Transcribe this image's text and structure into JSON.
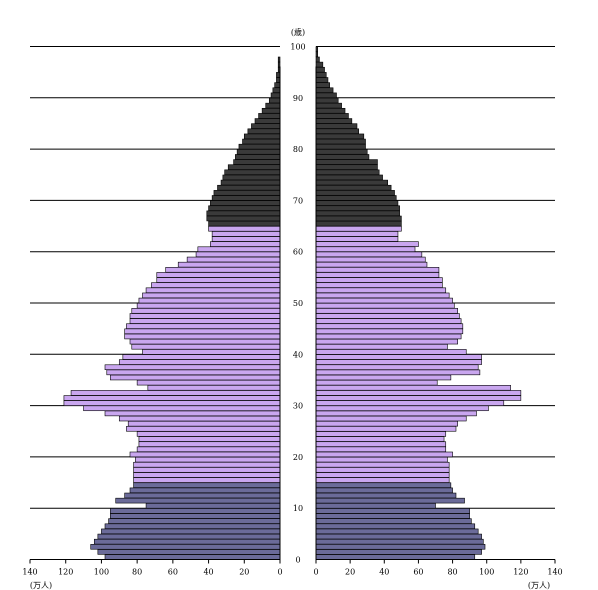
{
  "chart_data": {
    "type": "bar",
    "orientation": "horizontal",
    "layout": "population-pyramid",
    "age_unit": "(歳)",
    "value_unit": "(万人)",
    "age_range": [
      0,
      100
    ],
    "age_ticks": [
      "0",
      "10",
      "20",
      "30",
      "40",
      "50",
      "60",
      "70",
      "80",
      "90",
      "100"
    ],
    "value_range": [
      0,
      140
    ],
    "left_ticks": [
      "140",
      "120",
      "100",
      "80",
      "60",
      "40",
      "20",
      "0"
    ],
    "right_ticks": [
      "0",
      "20",
      "40",
      "60",
      "80",
      "100",
      "120",
      "140"
    ],
    "grid": "horizontal every 10 years",
    "colors": {
      "age_0_14": "#6b6b99",
      "age_15_64": "#c9a6ef",
      "age_65_plus": "#3a3a3a",
      "edge": "#000000"
    },
    "age_groups": [
      {
        "from": 0,
        "to": 14,
        "color_key": "age_0_14"
      },
      {
        "from": 15,
        "to": 64,
        "color_key": "age_15_64"
      },
      {
        "from": 65,
        "to": 99,
        "color_key": "age_65_plus"
      }
    ],
    "male": [
      98,
      102,
      106,
      104,
      102,
      100,
      98,
      96,
      95,
      95,
      75,
      92,
      87,
      84,
      82,
      82,
      82,
      82,
      82,
      81,
      84,
      80,
      79,
      79,
      80,
      86,
      85,
      90,
      98,
      110,
      121,
      121,
      117,
      74,
      80,
      95,
      97,
      98,
      90,
      88,
      77,
      83,
      84,
      87,
      87,
      86,
      84,
      84,
      83,
      80,
      79,
      77,
      75,
      72,
      69,
      69,
      64,
      57,
      52,
      47,
      46,
      39,
      38,
      38,
      40,
      40,
      41,
      41,
      40,
      39,
      38,
      37,
      35,
      33,
      32,
      31,
      29,
      26,
      25,
      24,
      23,
      21,
      20,
      18,
      16,
      14,
      12,
      10,
      8,
      6,
      5,
      4,
      3,
      2,
      2,
      1,
      1,
      1,
      0,
      0
    ],
    "female": [
      93,
      97,
      99,
      98,
      97,
      95,
      93,
      91,
      90,
      90,
      70,
      87,
      82,
      80,
      79,
      78,
      78,
      78,
      78,
      77,
      80,
      76,
      76,
      75,
      76,
      82,
      83,
      88,
      94,
      101,
      110,
      120,
      120,
      114,
      71,
      79,
      96,
      95,
      97,
      97,
      88,
      77,
      83,
      85,
      86,
      86,
      85,
      84,
      83,
      81,
      80,
      78,
      76,
      74,
      74,
      72,
      72,
      65,
      64,
      62,
      58,
      60,
      48,
      48,
      50,
      50,
      50,
      49,
      49,
      48,
      47,
      46,
      44,
      42,
      39,
      37,
      36,
      36,
      31,
      30,
      29,
      29,
      28,
      25,
      24,
      21,
      19,
      17,
      15,
      13,
      12,
      10,
      8,
      7,
      6,
      5,
      4,
      2,
      1,
      1
    ]
  }
}
